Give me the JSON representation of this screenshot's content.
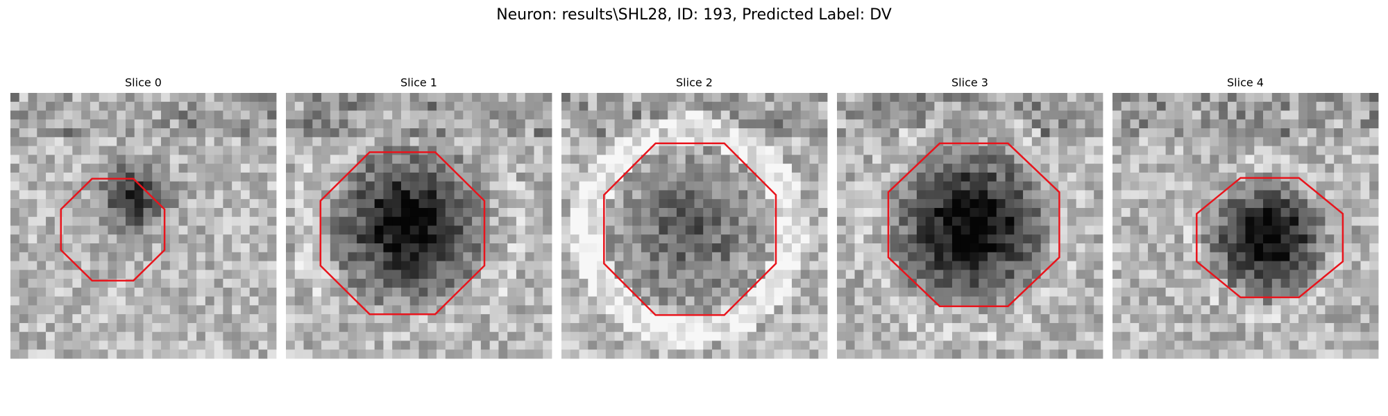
{
  "title": "Neuron: results\\SHL28, ID: 193, Predicted Label: DV",
  "panels": [
    {
      "title": "Slice 0"
    },
    {
      "title": "Slice 1"
    },
    {
      "title": "Slice 2"
    },
    {
      "title": "Slice 3"
    },
    {
      "title": "Slice 4"
    }
  ]
}
